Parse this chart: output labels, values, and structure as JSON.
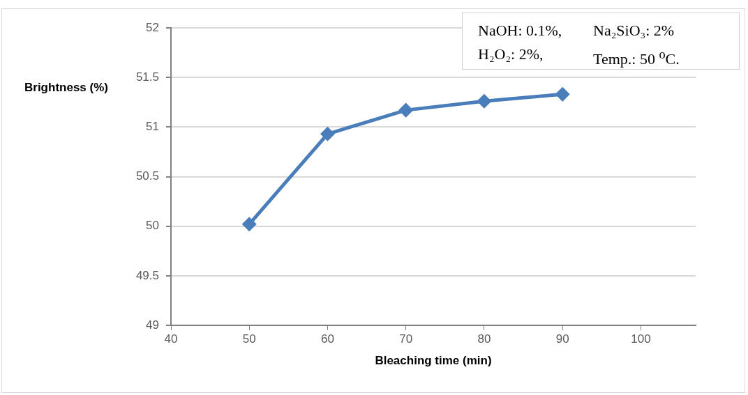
{
  "chart_data": {
    "type": "line",
    "xlabel": "Bleaching time (min)",
    "ylabel": "Brightness (%)",
    "x": [
      50,
      60,
      70,
      80,
      90
    ],
    "series": [
      {
        "color": "#4a7ebb",
        "values": [
          50.02,
          50.93,
          51.17,
          51.26,
          51.33
        ]
      }
    ],
    "xlim": [
      40,
      107
    ],
    "xticks": [
      40,
      50,
      60,
      70,
      80,
      90,
      100
    ],
    "ylim": [
      49,
      52
    ],
    "yticks": [
      49,
      49.5,
      50,
      50.5,
      51,
      51.5,
      52
    ],
    "grid": "y",
    "legend": false,
    "marker": "diamond",
    "line_style": "solid",
    "annotations": [
      "NaOH: 0.1%,",
      "Na₂SiO₃: 2%",
      "H₂O₂: 2%,",
      "Temp.: 50 $^{o}$C."
    ]
  }
}
